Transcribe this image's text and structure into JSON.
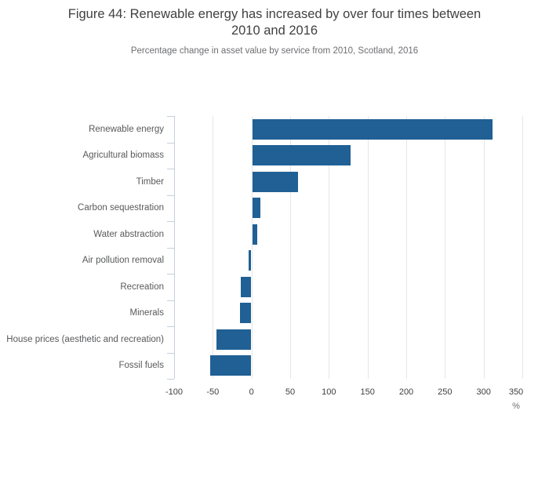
{
  "header": {
    "title_lines": [
      "Figure 44: Renewable energy has increased by over four times between",
      "2010 and 2016"
    ]
  },
  "chart_data": {
    "type": "bar",
    "orientation": "horizontal",
    "title": "Figure 44: Renewable energy has increased by over four times between 2010 and 2016",
    "subtitle": "Percentage change in asset value by service from 2010, Scotland, 2016",
    "categories": [
      "Renewable energy",
      "Agricultural biomass",
      "Timber",
      "Carbon sequestration",
      "Water abstraction",
      "Air pollution removal",
      "Recreation",
      "Minerals",
      "House prices (aesthetic and recreation)",
      "Fossil fuels"
    ],
    "values": [
      312,
      128,
      60,
      11,
      7,
      -4,
      -14,
      -15,
      -45,
      -53
    ],
    "xlabel": "%",
    "ylabel": "",
    "xlim": [
      -100,
      350
    ],
    "x_ticks": [
      -100,
      -50,
      0,
      50,
      100,
      150,
      200,
      250,
      300,
      350
    ],
    "unit_label": "%",
    "grid": true,
    "legend": "none"
  },
  "colors": {
    "bar": "#206095",
    "gridline": "#e6e6e6",
    "category_axis": "#c5cfd9",
    "title_text": "#414042",
    "subtitle_text": "#6d6e71",
    "tick_label_text": "#414042",
    "category_label_text": "#58595b"
  }
}
